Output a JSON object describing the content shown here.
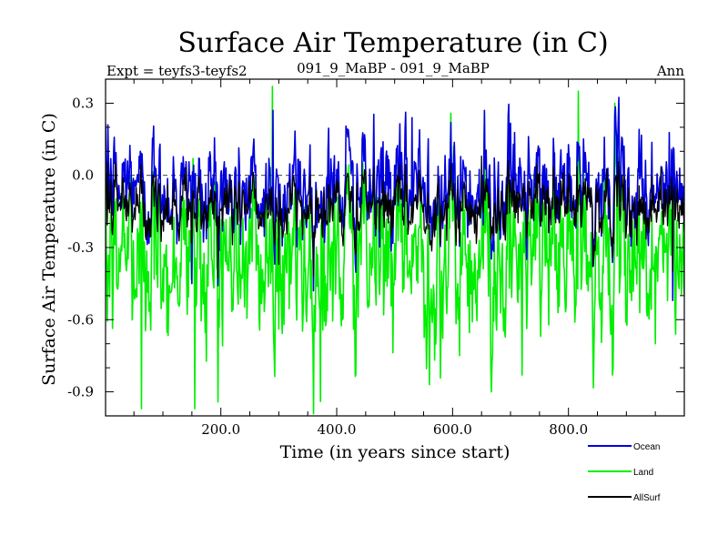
{
  "chart_data": {
    "type": "line",
    "title": "Surface Air Temperature (in C)",
    "subtitle_left": "Expt = teyfs3-teyfs2",
    "subtitle_center": "091_9_MaBP - 091_9_MaBP",
    "subtitle_right": "Ann",
    "xlabel": "Time (in years since start)",
    "ylabel": "Surface Air Temperature (in C)",
    "xlim": [
      1,
      1000
    ],
    "ylim": [
      -1.0,
      0.4
    ],
    "xticks": [
      200,
      400,
      600,
      800
    ],
    "xtick_labels": [
      "200.0",
      "400.0",
      "600.0",
      "800.0"
    ],
    "yticks": [
      0.3,
      0.0,
      -0.3,
      -0.6,
      -0.9
    ],
    "ytick_labels": [
      "0.3",
      "0.0",
      "-0.3",
      "-0.6",
      "-0.9"
    ],
    "reference_line": 0.0,
    "n_points": 1000,
    "series": [
      {
        "name": "Land",
        "color": "#00ee00",
        "mean": -0.34,
        "spread": 0.17,
        "anchors": [
          {
            "x": 63,
            "y": -0.97
          },
          {
            "x": 155,
            "y": -0.97
          },
          {
            "x": 152,
            "y": 0.07
          },
          {
            "x": 289,
            "y": 0.37
          },
          {
            "x": 372,
            "y": -0.94
          },
          {
            "x": 655,
            "y": 0.26
          },
          {
            "x": 817,
            "y": 0.35
          },
          {
            "x": 880,
            "y": 0.3
          },
          {
            "x": 560,
            "y": -0.87
          },
          {
            "x": 720,
            "y": -0.83
          },
          {
            "x": 950,
            "y": -0.7
          }
        ]
      },
      {
        "name": "Ocean",
        "color": "#0000dd",
        "mean": -0.06,
        "spread": 0.11,
        "anchors": [
          {
            "x": 5,
            "y": 0.21
          },
          {
            "x": 290,
            "y": 0.27
          },
          {
            "x": 655,
            "y": 0.27
          },
          {
            "x": 880,
            "y": 0.25
          },
          {
            "x": 530,
            "y": 0.24
          },
          {
            "x": 150,
            "y": -0.45
          },
          {
            "x": 980,
            "y": -0.52
          }
        ]
      },
      {
        "name": "AllSurf",
        "color": "#000000",
        "mean": -0.13,
        "spread": 0.07,
        "anchors": [
          {
            "x": 5,
            "y": 0.05
          },
          {
            "x": 650,
            "y": 0.08
          },
          {
            "x": 960,
            "y": 0.03
          },
          {
            "x": 300,
            "y": -0.37
          },
          {
            "x": 980,
            "y": -0.4
          }
        ]
      }
    ],
    "legend": [
      {
        "label": "Ocean",
        "color": "#0000dd"
      },
      {
        "label": "Land",
        "color": "#00ee00"
      },
      {
        "label": "AllSurf",
        "color": "#000000"
      }
    ]
  }
}
